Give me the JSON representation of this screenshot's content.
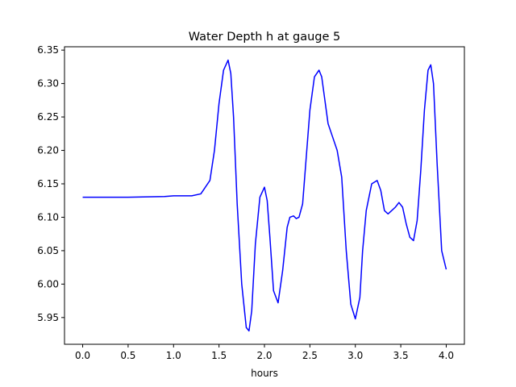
{
  "chart_data": {
    "type": "line",
    "title": "Water Depth h at gauge 5",
    "xlabel": "hours",
    "ylabel": "",
    "xlim": [
      -0.2,
      4.2
    ],
    "ylim": [
      5.91,
      6.355
    ],
    "xticks": [
      0.0,
      0.5,
      1.0,
      1.5,
      2.0,
      2.5,
      3.0,
      3.5,
      4.0
    ],
    "xtick_labels": [
      "0.0",
      "0.5",
      "1.0",
      "1.5",
      "2.0",
      "2.5",
      "3.0",
      "3.5",
      "4.0"
    ],
    "yticks": [
      5.95,
      6.0,
      6.05,
      6.1,
      6.15,
      6.2,
      6.25,
      6.3,
      6.35
    ],
    "ytick_labels": [
      "5.95",
      "6.00",
      "6.05",
      "6.10",
      "6.15",
      "6.20",
      "6.25",
      "6.30",
      "6.35"
    ],
    "grid": false,
    "legend": "none",
    "series": [
      {
        "color": "#0000ff",
        "x": [
          0.0,
          0.5,
          0.9,
          1.0,
          1.2,
          1.3,
          1.4,
          1.45,
          1.5,
          1.55,
          1.6,
          1.63,
          1.66,
          1.7,
          1.75,
          1.8,
          1.83,
          1.86,
          1.9,
          1.95,
          2.0,
          2.03,
          2.06,
          2.1,
          2.15,
          2.2,
          2.25,
          2.28,
          2.32,
          2.35,
          2.38,
          2.42,
          2.46,
          2.5,
          2.55,
          2.6,
          2.63,
          2.66,
          2.7,
          2.75,
          2.8,
          2.85,
          2.9,
          2.95,
          3.0,
          3.05,
          3.08,
          3.12,
          3.18,
          3.24,
          3.28,
          3.32,
          3.36,
          3.4,
          3.44,
          3.48,
          3.52,
          3.56,
          3.6,
          3.64,
          3.68,
          3.72,
          3.76,
          3.8,
          3.83,
          3.86,
          3.9,
          3.95,
          4.0
        ],
        "y": [
          6.13,
          6.13,
          6.131,
          6.132,
          6.132,
          6.135,
          6.155,
          6.2,
          6.27,
          6.32,
          6.335,
          6.315,
          6.25,
          6.12,
          6.0,
          5.935,
          5.93,
          5.96,
          6.06,
          6.13,
          6.145,
          6.125,
          6.07,
          5.99,
          5.972,
          6.02,
          6.085,
          6.1,
          6.102,
          6.098,
          6.1,
          6.12,
          6.19,
          6.26,
          6.31,
          6.32,
          6.31,
          6.28,
          6.24,
          6.22,
          6.2,
          6.16,
          6.05,
          5.97,
          5.948,
          5.98,
          6.05,
          6.11,
          6.15,
          6.155,
          6.14,
          6.11,
          6.105,
          6.11,
          6.115,
          6.122,
          6.115,
          6.09,
          6.07,
          6.065,
          6.095,
          6.17,
          6.26,
          6.32,
          6.328,
          6.3,
          6.18,
          6.05,
          6.022
        ]
      }
    ]
  }
}
